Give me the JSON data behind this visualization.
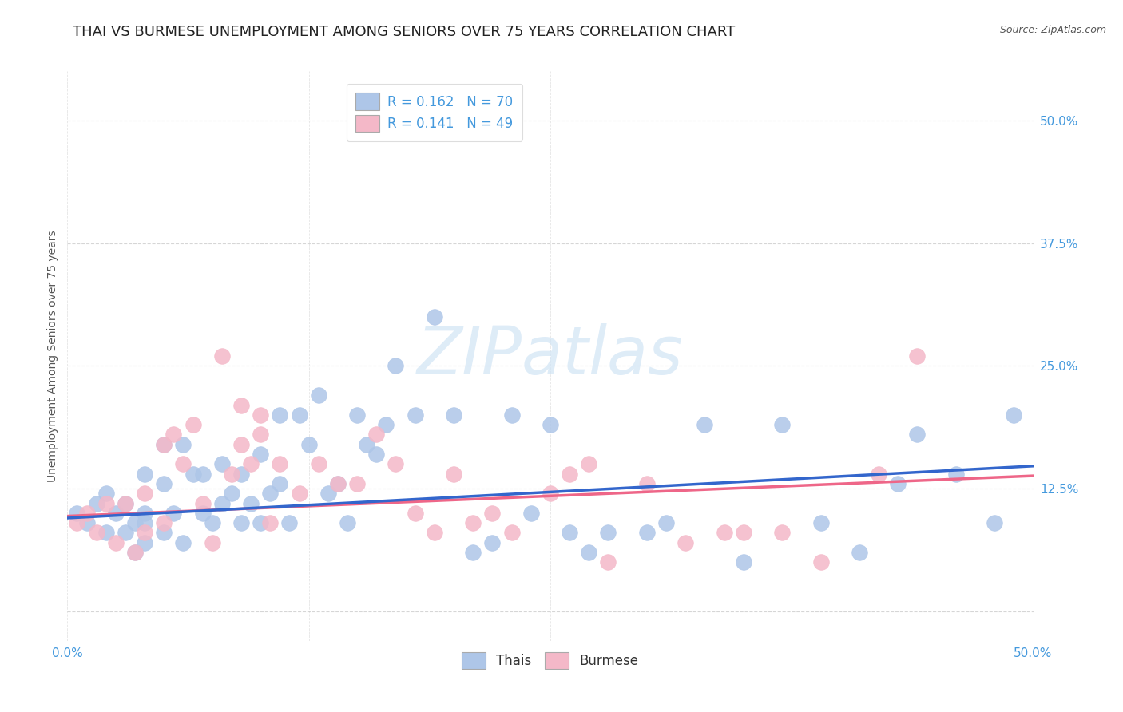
{
  "title": "THAI VS BURMESE UNEMPLOYMENT AMONG SENIORS OVER 75 YEARS CORRELATION CHART",
  "source": "Source: ZipAtlas.com",
  "ylabel": "Unemployment Among Seniors over 75 years",
  "xlim": [
    0.0,
    0.5
  ],
  "ylim": [
    -0.03,
    0.55
  ],
  "color_thai": "#AEC6E8",
  "color_burmese": "#F4B8C8",
  "color_text_blue": "#4499DD",
  "color_line_thai": "#3366CC",
  "color_line_burmese": "#EE6688",
  "watermark_color": "#D0E4F5",
  "thai_x": [
    0.005,
    0.01,
    0.015,
    0.02,
    0.02,
    0.025,
    0.03,
    0.03,
    0.035,
    0.035,
    0.04,
    0.04,
    0.04,
    0.04,
    0.05,
    0.05,
    0.05,
    0.055,
    0.06,
    0.06,
    0.065,
    0.07,
    0.07,
    0.075,
    0.08,
    0.08,
    0.085,
    0.09,
    0.09,
    0.095,
    0.1,
    0.1,
    0.105,
    0.11,
    0.11,
    0.115,
    0.12,
    0.125,
    0.13,
    0.135,
    0.14,
    0.145,
    0.15,
    0.155,
    0.16,
    0.165,
    0.17,
    0.18,
    0.19,
    0.2,
    0.21,
    0.22,
    0.23,
    0.24,
    0.25,
    0.26,
    0.27,
    0.28,
    0.3,
    0.31,
    0.33,
    0.35,
    0.37,
    0.39,
    0.41,
    0.43,
    0.44,
    0.46,
    0.48,
    0.49
  ],
  "thai_y": [
    0.1,
    0.09,
    0.11,
    0.12,
    0.08,
    0.1,
    0.11,
    0.08,
    0.09,
    0.06,
    0.14,
    0.1,
    0.09,
    0.07,
    0.17,
    0.13,
    0.08,
    0.1,
    0.17,
    0.07,
    0.14,
    0.14,
    0.1,
    0.09,
    0.15,
    0.11,
    0.12,
    0.14,
    0.09,
    0.11,
    0.16,
    0.09,
    0.12,
    0.2,
    0.13,
    0.09,
    0.2,
    0.17,
    0.22,
    0.12,
    0.13,
    0.09,
    0.2,
    0.17,
    0.16,
    0.19,
    0.25,
    0.2,
    0.3,
    0.2,
    0.06,
    0.07,
    0.2,
    0.1,
    0.19,
    0.08,
    0.06,
    0.08,
    0.08,
    0.09,
    0.19,
    0.05,
    0.19,
    0.09,
    0.06,
    0.13,
    0.18,
    0.14,
    0.09,
    0.2
  ],
  "burmese_x": [
    0.005,
    0.01,
    0.015,
    0.02,
    0.025,
    0.03,
    0.035,
    0.04,
    0.04,
    0.05,
    0.05,
    0.055,
    0.06,
    0.065,
    0.07,
    0.075,
    0.08,
    0.085,
    0.09,
    0.09,
    0.095,
    0.1,
    0.1,
    0.105,
    0.11,
    0.12,
    0.13,
    0.14,
    0.15,
    0.16,
    0.17,
    0.18,
    0.19,
    0.2,
    0.21,
    0.22,
    0.23,
    0.25,
    0.26,
    0.27,
    0.28,
    0.3,
    0.32,
    0.34,
    0.35,
    0.37,
    0.39,
    0.42,
    0.44
  ],
  "burmese_y": [
    0.09,
    0.1,
    0.08,
    0.11,
    0.07,
    0.11,
    0.06,
    0.12,
    0.08,
    0.17,
    0.09,
    0.18,
    0.15,
    0.19,
    0.11,
    0.07,
    0.26,
    0.14,
    0.21,
    0.17,
    0.15,
    0.2,
    0.18,
    0.09,
    0.15,
    0.12,
    0.15,
    0.13,
    0.13,
    0.18,
    0.15,
    0.1,
    0.08,
    0.14,
    0.09,
    0.1,
    0.08,
    0.12,
    0.14,
    0.15,
    0.05,
    0.13,
    0.07,
    0.08,
    0.08,
    0.08,
    0.05,
    0.14,
    0.26
  ],
  "thai_trend_x": [
    0.0,
    0.5
  ],
  "thai_trend_y": [
    0.095,
    0.148
  ],
  "burmese_trend_x": [
    0.0,
    0.5
  ],
  "burmese_trend_y": [
    0.097,
    0.138
  ],
  "background_color": "#FFFFFF",
  "grid_color": "#CCCCCC",
  "title_fontsize": 13,
  "label_fontsize": 10,
  "tick_fontsize": 11,
  "source_fontsize": 9,
  "legend1_label": "R = 0.162   N = 70",
  "legend2_label": "R = 0.141   N = 49"
}
